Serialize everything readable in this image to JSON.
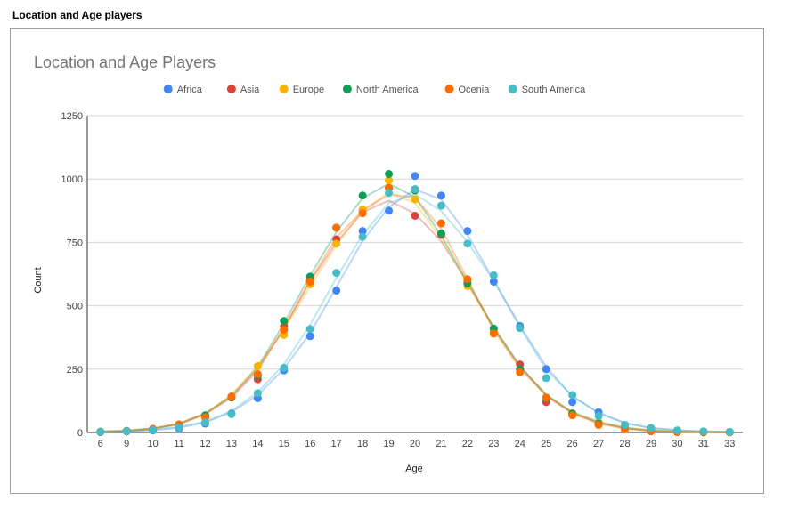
{
  "page": {
    "heading": "Location and Age players"
  },
  "chart_data": {
    "type": "scatter",
    "title": "Location and Age Players",
    "xlabel": "Age",
    "ylabel": "Count",
    "ylim": [
      0,
      1250
    ],
    "yticks": [
      0,
      250,
      500,
      750,
      1000,
      1250
    ],
    "x": [
      6,
      9,
      10,
      11,
      12,
      13,
      14,
      15,
      16,
      17,
      18,
      19,
      20,
      21,
      22,
      23,
      24,
      25,
      26,
      27,
      28,
      29,
      30,
      31,
      33
    ],
    "grid": true,
    "legend_position": "top",
    "trendlines": true,
    "series": [
      {
        "name": "Africa",
        "color": "#4285f4",
        "values": [
          2,
          4,
          8,
          15,
          35,
          75,
          135,
          245,
          380,
          560,
          795,
          875,
          1012,
          935,
          795,
          595,
          420,
          250,
          120,
          80,
          30,
          15,
          8,
          4,
          2
        ]
      },
      {
        "name": "Asia",
        "color": "#db4437",
        "values": [
          2,
          5,
          12,
          28,
          62,
          138,
          210,
          420,
          600,
          762,
          875,
          965,
          855,
          780,
          600,
          395,
          268,
          120,
          75,
          32,
          15,
          5,
          2,
          1,
          1
        ]
      },
      {
        "name": "Europe",
        "color": "#f4b400",
        "values": [
          3,
          6,
          14,
          30,
          58,
          140,
          262,
          385,
          585,
          745,
          880,
          995,
          920,
          785,
          578,
          400,
          250,
          135,
          75,
          40,
          18,
          8,
          3,
          2,
          1
        ]
      },
      {
        "name": "North America",
        "color": "#0f9d58",
        "values": [
          3,
          6,
          12,
          30,
          68,
          140,
          225,
          440,
          615,
          808,
          935,
          1020,
          955,
          785,
          588,
          410,
          250,
          135,
          75,
          35,
          15,
          6,
          2,
          1,
          1
        ]
      },
      {
        "name": "Ocenia",
        "color": "#ff6d00",
        "values": [
          2,
          6,
          14,
          32,
          60,
          142,
          230,
          405,
          595,
          808,
          865,
          965,
          960,
          825,
          605,
          390,
          238,
          138,
          68,
          30,
          12,
          5,
          2,
          1,
          1
        ]
      },
      {
        "name": "South America",
        "color": "#46bdc6",
        "values": [
          2,
          5,
          10,
          20,
          40,
          72,
          155,
          255,
          408,
          630,
          772,
          945,
          960,
          895,
          745,
          620,
          412,
          215,
          148,
          65,
          30,
          18,
          8,
          4,
          2
        ]
      }
    ]
  }
}
